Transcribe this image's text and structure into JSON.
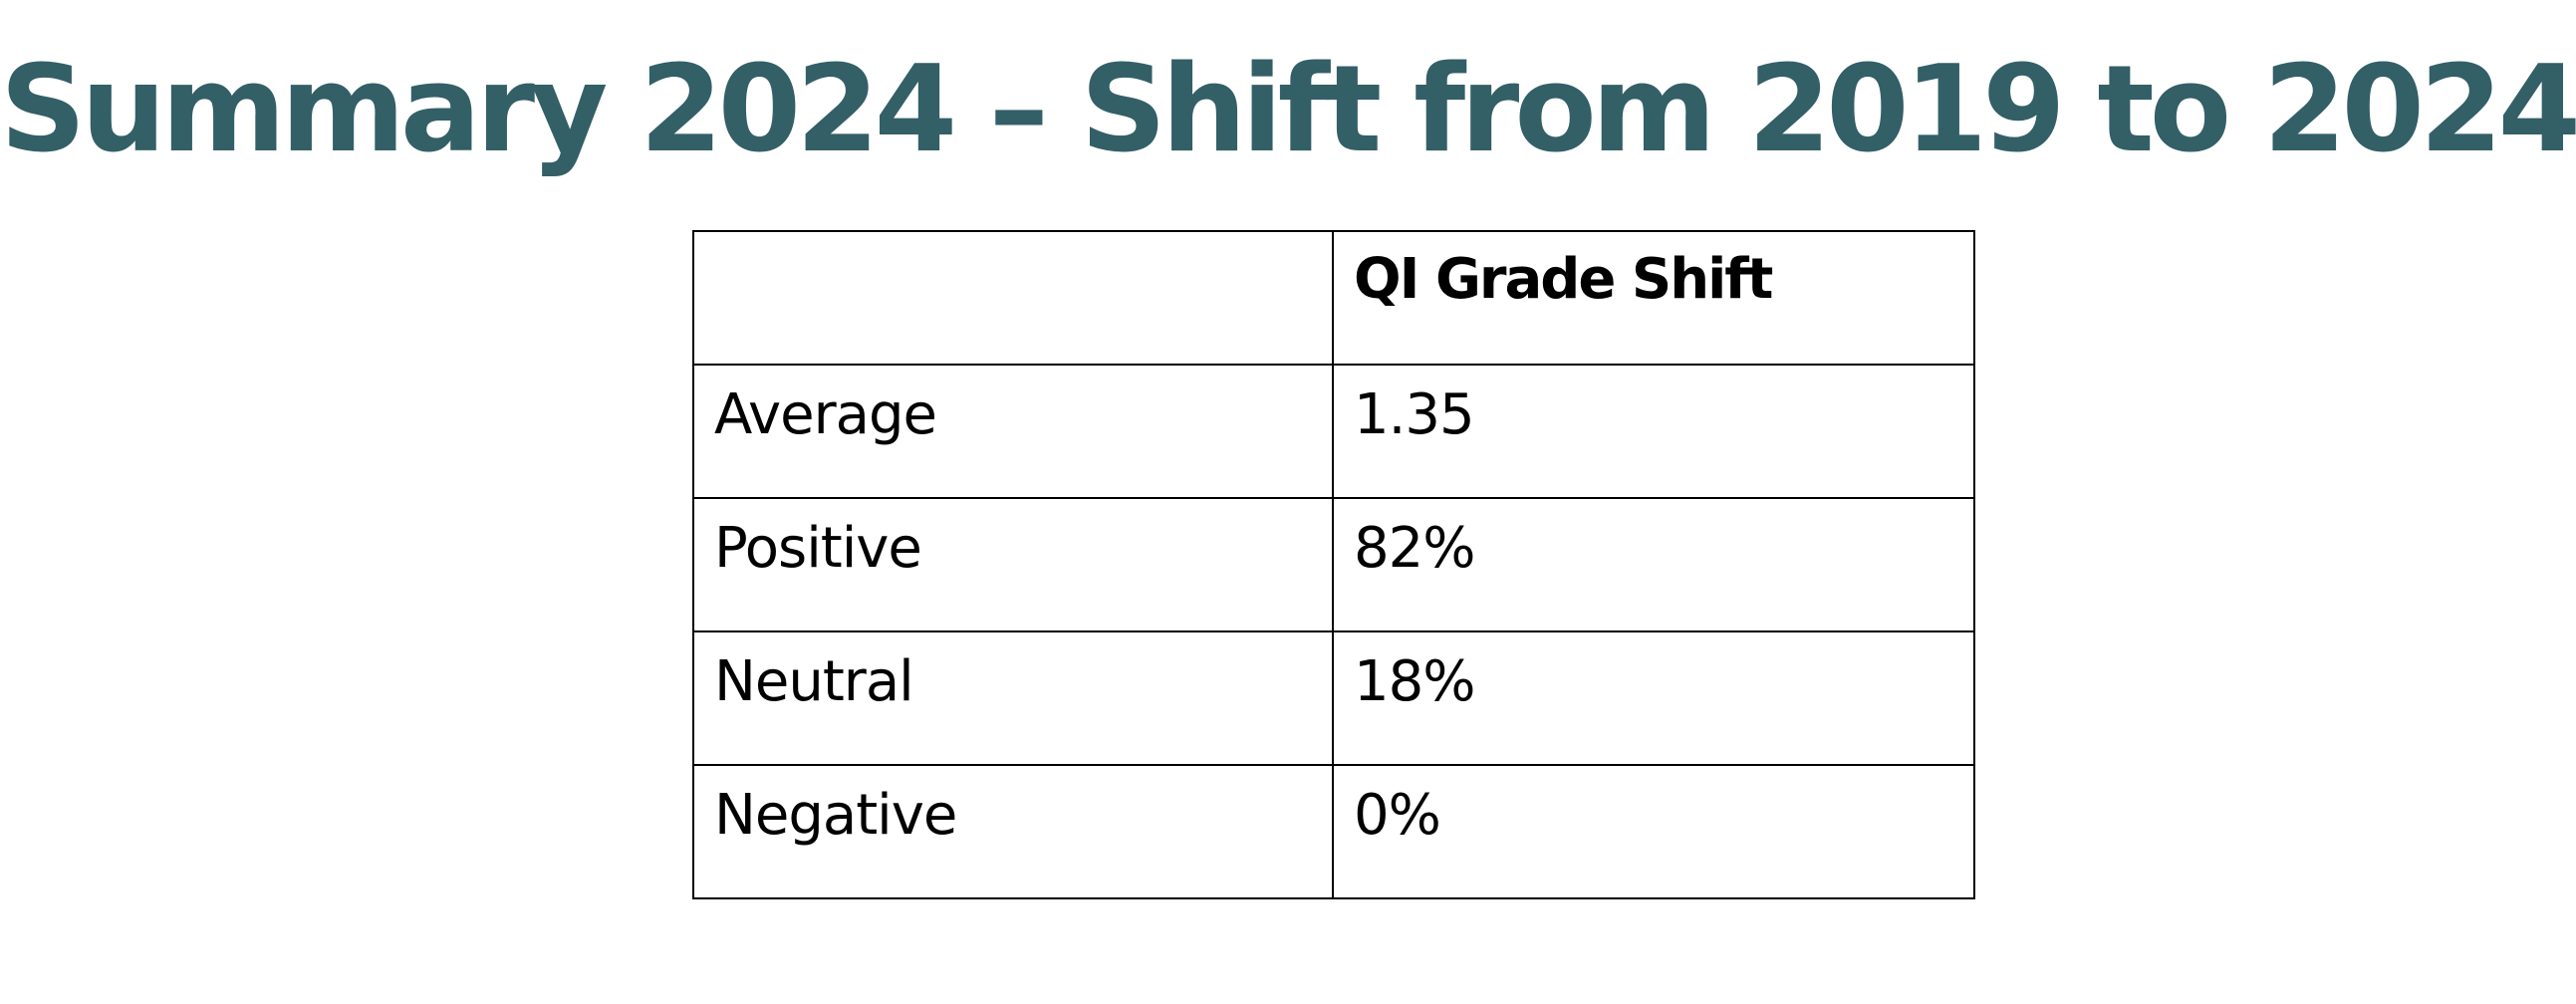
{
  "title": "Summary 2024 – Shift from 2019 to 2024",
  "table": {
    "header": [
      "",
      "QI Grade Shift"
    ],
    "rows": [
      [
        "Average",
        "1.35"
      ],
      [
        "Positive",
        "82%"
      ],
      [
        "Neutral",
        "18%"
      ],
      [
        "Negative",
        "0%"
      ]
    ]
  },
  "colors": {
    "title": "#335f67",
    "text": "#000000",
    "border": "#000000",
    "background": "#ffffff"
  }
}
